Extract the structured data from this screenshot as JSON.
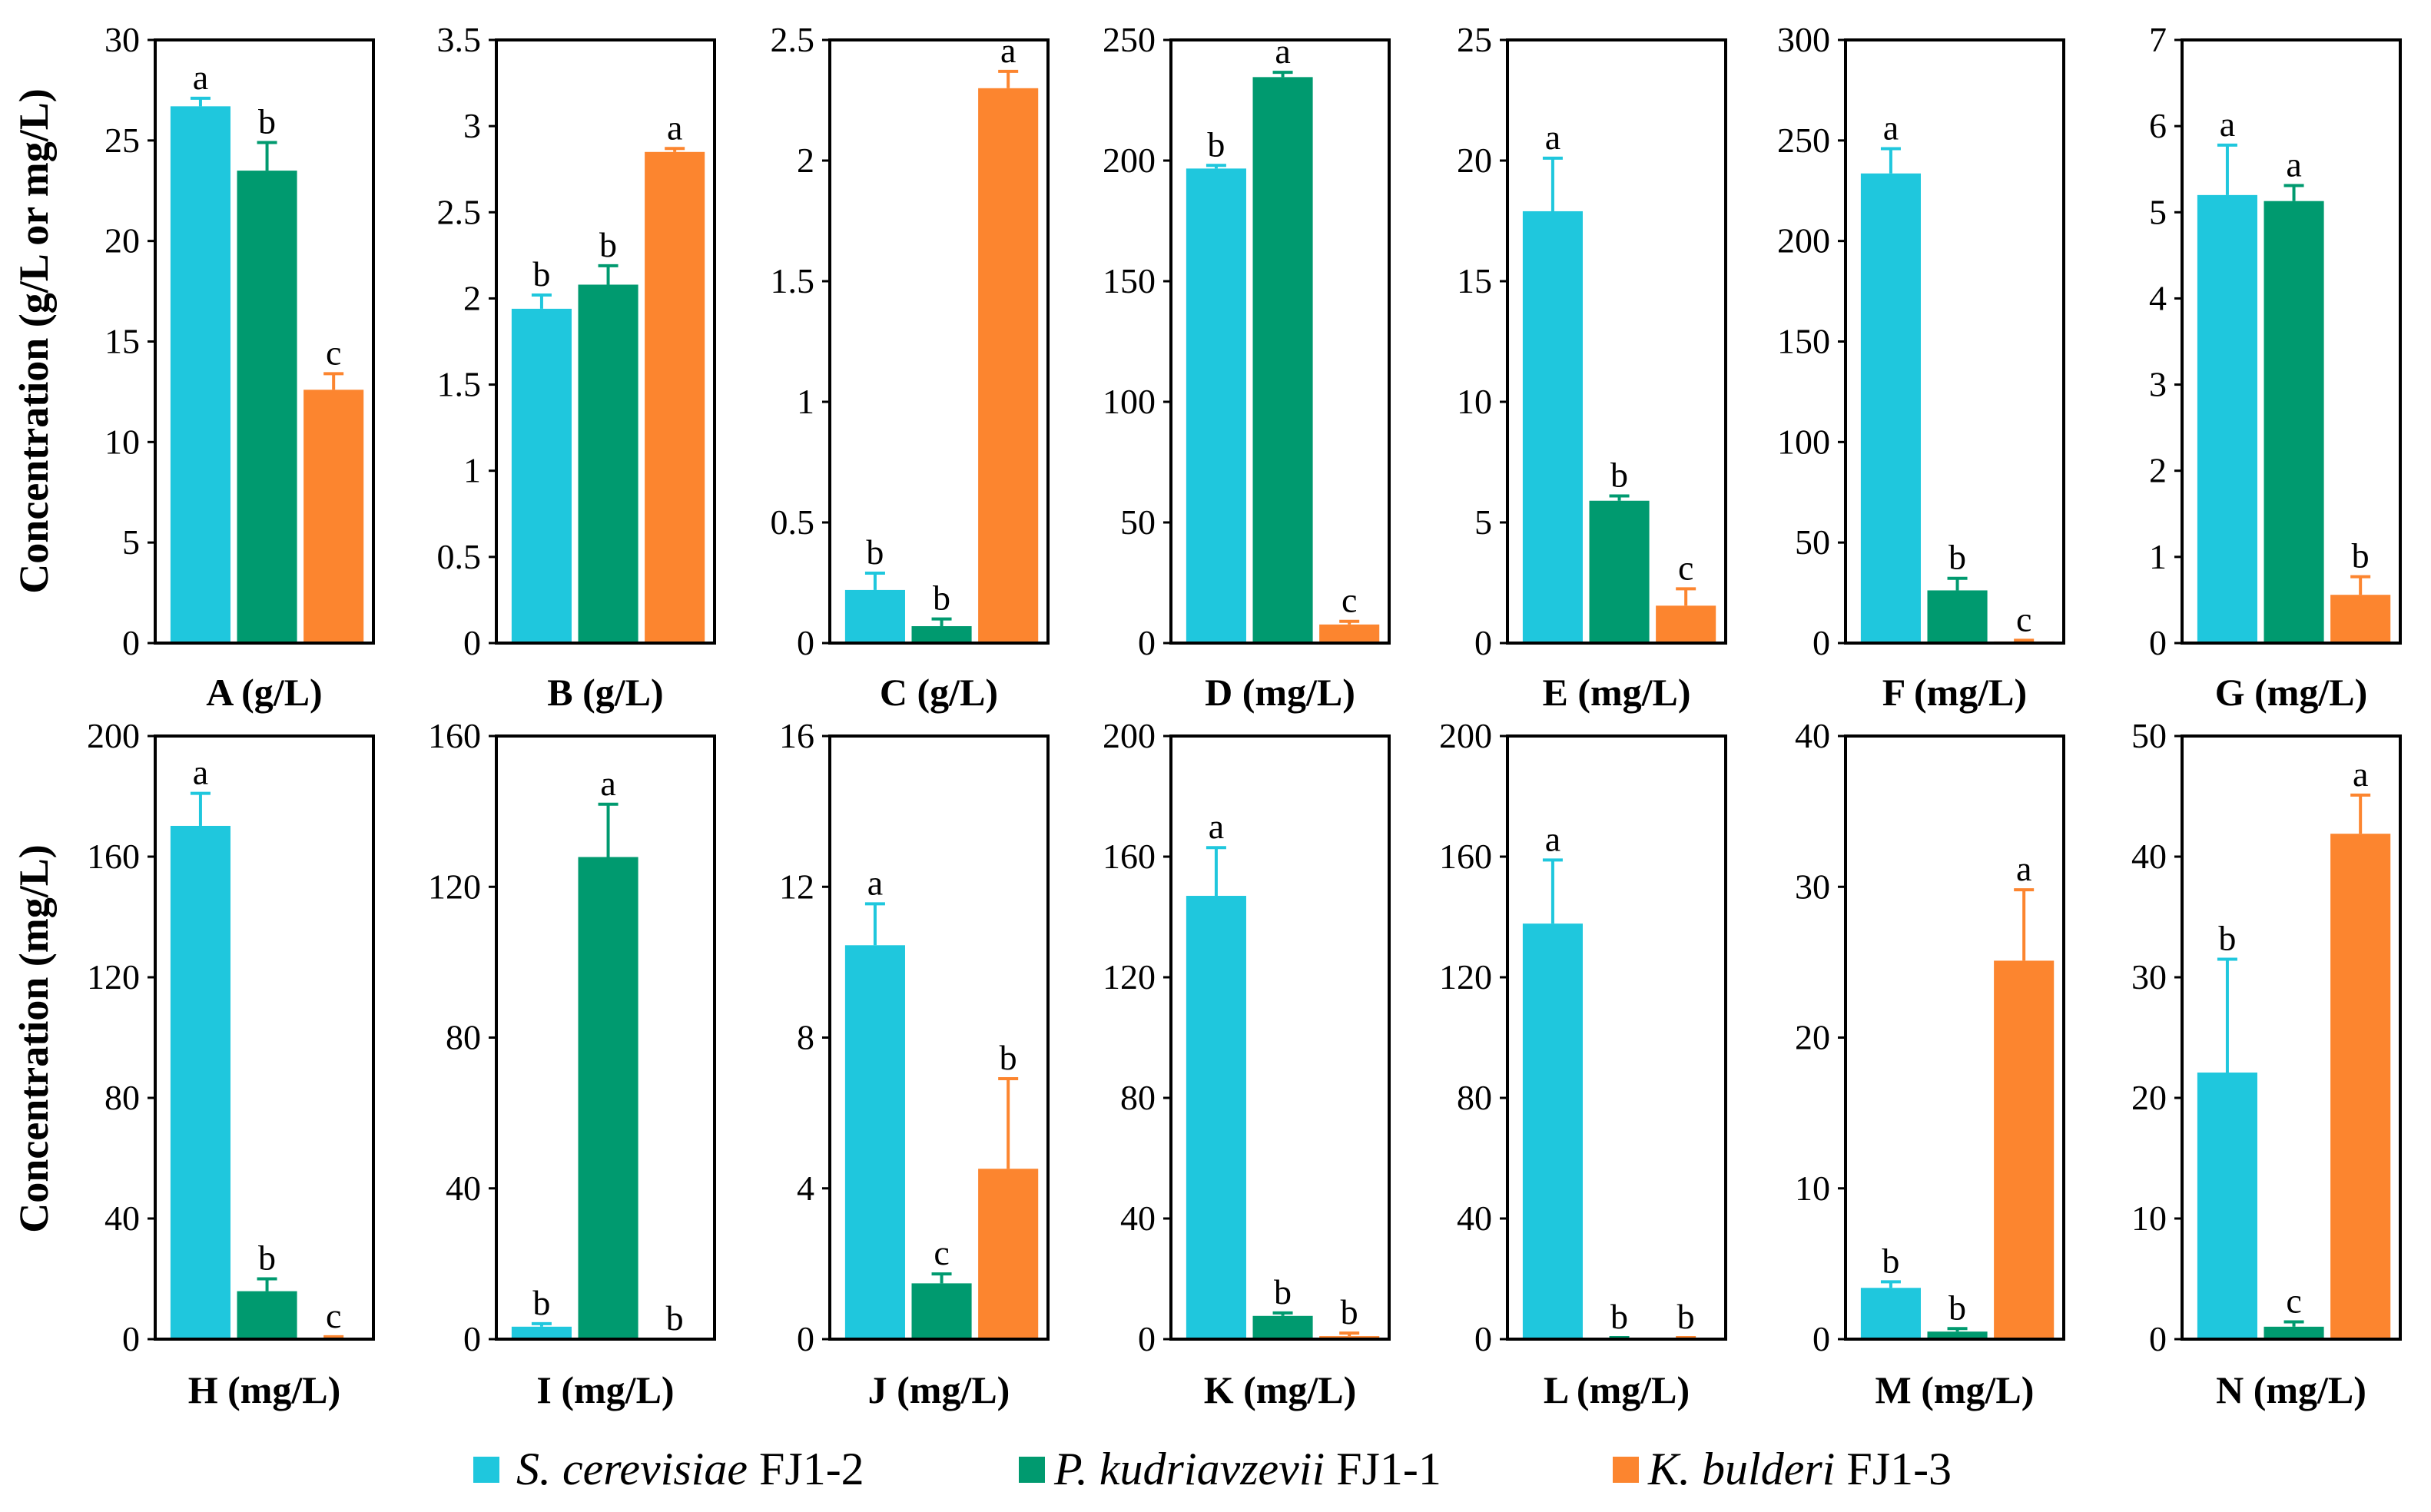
{
  "legend": {
    "items": [
      {
        "species": "S. cerevisiae",
        "strain": "FJ1-2",
        "color": "#1fc7dd"
      },
      {
        "species": "P. kudriavzevii",
        "strain": "FJ1-1",
        "color": "#009a6f"
      },
      {
        "species": "K. bulderi",
        "strain": "FJ1-3",
        "color": "#fc852f"
      }
    ]
  },
  "chart_data": [
    {
      "type": "bar",
      "ylabel": "Concentration (g/L or mg/L)",
      "xlabel": "A (g/L)",
      "ylim": [
        0,
        30
      ],
      "yticks": [
        "0",
        "5",
        "10",
        "15",
        "20",
        "25",
        "30"
      ],
      "values": [
        26.7,
        23.5,
        12.6
      ],
      "errors": [
        0.4,
        1.4,
        0.8
      ],
      "letters": [
        "a",
        "b",
        "c"
      ]
    },
    {
      "type": "bar",
      "xlabel": "B (g/L)",
      "ylim": [
        0,
        3.5
      ],
      "yticks": [
        "0",
        "0.5",
        "1",
        "1.5",
        "2",
        "2.5",
        "3",
        "3.5"
      ],
      "values": [
        1.94,
        2.08,
        2.85
      ],
      "errors": [
        0.08,
        0.11,
        0.02
      ],
      "letters": [
        "b",
        "b",
        "a"
      ]
    },
    {
      "type": "bar",
      "xlabel": "C (g/L)",
      "ylim": [
        0,
        2.5
      ],
      "yticks": [
        "0",
        "0.5",
        "1",
        "1.5",
        "2",
        "2.5"
      ],
      "values": [
        0.22,
        0.07,
        2.3
      ],
      "errors": [
        0.07,
        0.03,
        0.07
      ],
      "letters": [
        "b",
        "b",
        "a"
      ]
    },
    {
      "type": "bar",
      "xlabel": "D (mg/L)",
      "ylim": [
        0,
        250
      ],
      "yticks": [
        "0",
        "50",
        "100",
        "150",
        "200",
        "250"
      ],
      "values": [
        196.7,
        234.6,
        7.7
      ],
      "errors": [
        1.3,
        2.0,
        1.3
      ],
      "letters": [
        "b",
        "a",
        "c"
      ]
    },
    {
      "type": "bar",
      "xlabel": "E (mg/L)",
      "ylim": [
        0,
        25
      ],
      "yticks": [
        "0",
        "5",
        "10",
        "15",
        "20",
        "25"
      ],
      "values": [
        17.9,
        5.9,
        1.55
      ],
      "errors": [
        2.2,
        0.2,
        0.7
      ],
      "letters": [
        "a",
        "b",
        "c"
      ]
    },
    {
      "type": "bar",
      "xlabel": "F (mg/L)",
      "ylim": [
        0,
        300
      ],
      "yticks": [
        "0",
        "50",
        "100",
        "150",
        "200",
        "250",
        "300"
      ],
      "values": [
        233.6,
        26.2,
        0.8
      ],
      "errors": [
        12.3,
        6.0,
        0.6
      ],
      "letters": [
        "a",
        "b",
        "c"
      ]
    },
    {
      "type": "bar",
      "xlabel": "G (mg/L)",
      "ylim": [
        0,
        7
      ],
      "yticks": [
        "0",
        "1",
        "2",
        "3",
        "4",
        "5",
        "6",
        "7"
      ],
      "values": [
        5.2,
        5.13,
        0.56
      ],
      "errors": [
        0.58,
        0.18,
        0.21
      ],
      "letters": [
        "a",
        "a",
        "b"
      ]
    },
    {
      "type": "bar",
      "ylabel": "Concentration (mg/L)",
      "xlabel": "H (mg/L)",
      "ylim": [
        0,
        200
      ],
      "yticks": [
        "0",
        "40",
        "80",
        "120",
        "160",
        "200"
      ],
      "values": [
        170.2,
        15.9,
        0.5
      ],
      "errors": [
        10.8,
        4.1,
        0.3
      ],
      "letters": [
        "a",
        "b",
        "c"
      ]
    },
    {
      "type": "bar",
      "xlabel": "I (mg/L)",
      "ylim": [
        0,
        160
      ],
      "yticks": [
        "0",
        "40",
        "80",
        "120",
        "160"
      ],
      "values": [
        3.3,
        127.9,
        0
      ],
      "errors": [
        0.8,
        14.0,
        0
      ],
      "letters": [
        "b",
        "a",
        "b"
      ]
    },
    {
      "type": "bar",
      "xlabel": "J (mg/L)",
      "ylim": [
        0,
        16
      ],
      "yticks": [
        "0",
        "4",
        "8",
        "12",
        "16"
      ],
      "values": [
        10.45,
        1.48,
        4.52
      ],
      "errors": [
        1.1,
        0.25,
        2.39
      ],
      "letters": [
        "a",
        "c",
        "b"
      ]
    },
    {
      "type": "bar",
      "xlabel": "K (mg/L)",
      "ylim": [
        0,
        200
      ],
      "yticks": [
        "0",
        "40",
        "80",
        "120",
        "160",
        "200"
      ],
      "values": [
        147.0,
        7.7,
        1.0
      ],
      "errors": [
        16.0,
        1.0,
        1.0
      ],
      "letters": [
        "a",
        "b",
        "b"
      ]
    },
    {
      "type": "bar",
      "xlabel": "L (mg/L)",
      "ylim": [
        0,
        200
      ],
      "yticks": [
        "0",
        "40",
        "80",
        "120",
        "160",
        "200"
      ],
      "values": [
        137.8,
        0.3,
        0.3
      ],
      "errors": [
        21.1,
        0.2,
        0.2
      ],
      "letters": [
        "a",
        "b",
        "b"
      ]
    },
    {
      "type": "bar",
      "xlabel": "M (mg/L)",
      "ylim": [
        0,
        40
      ],
      "yticks": [
        "0",
        "10",
        "20",
        "30",
        "40"
      ],
      "values": [
        3.4,
        0.5,
        25.1
      ],
      "errors": [
        0.4,
        0.2,
        4.7
      ],
      "letters": [
        "b",
        "b",
        "a"
      ]
    },
    {
      "type": "bar",
      "xlabel": "N (mg/L)",
      "ylim": [
        0,
        50
      ],
      "yticks": [
        "0",
        "10",
        "20",
        "30",
        "40",
        "50"
      ],
      "values": [
        22.1,
        1.03,
        41.9
      ],
      "errors": [
        9.4,
        0.4,
        3.2
      ],
      "letters": [
        "b",
        "c",
        "a"
      ]
    }
  ]
}
